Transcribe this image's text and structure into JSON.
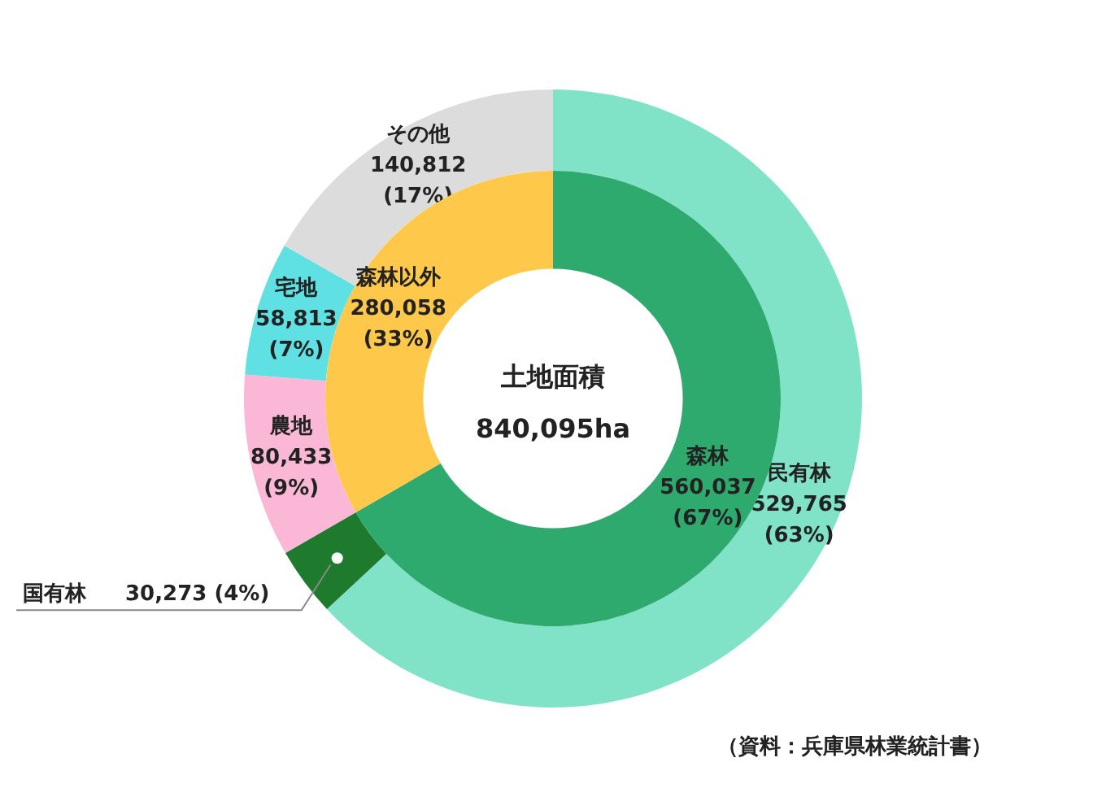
{
  "chart_data": [
    {
      "type": "donut",
      "title": "土地面積",
      "annotations": [
        "840,095ha"
      ],
      "categories": [
        "森林",
        "森林以外"
      ],
      "values": [
        560037,
        280058
      ],
      "colors": [
        "#2eaa6e",
        "#fec84a"
      ],
      "value_labels": [
        "560,037 (67%)",
        "280,058 (33%)"
      ]
    },
    {
      "type": "donut",
      "annotations": [
        "（資料：兵庫県林業統計書）"
      ],
      "categories": [
        "民有林",
        "国有林",
        "農地",
        "宅地",
        "その他"
      ],
      "values": [
        529765,
        30273,
        80433,
        58813,
        140812
      ],
      "colors": [
        "#80e3c8",
        "#1e7b2e",
        "#fbb8d6",
        "#5fe0e3",
        "#dcdcdc"
      ],
      "value_labels": [
        "529,765 (63%)",
        "30,273 (4%)",
        "80,433 (9%)",
        "58,813 (7%)",
        "140,812 (17%)"
      ]
    }
  ]
}
